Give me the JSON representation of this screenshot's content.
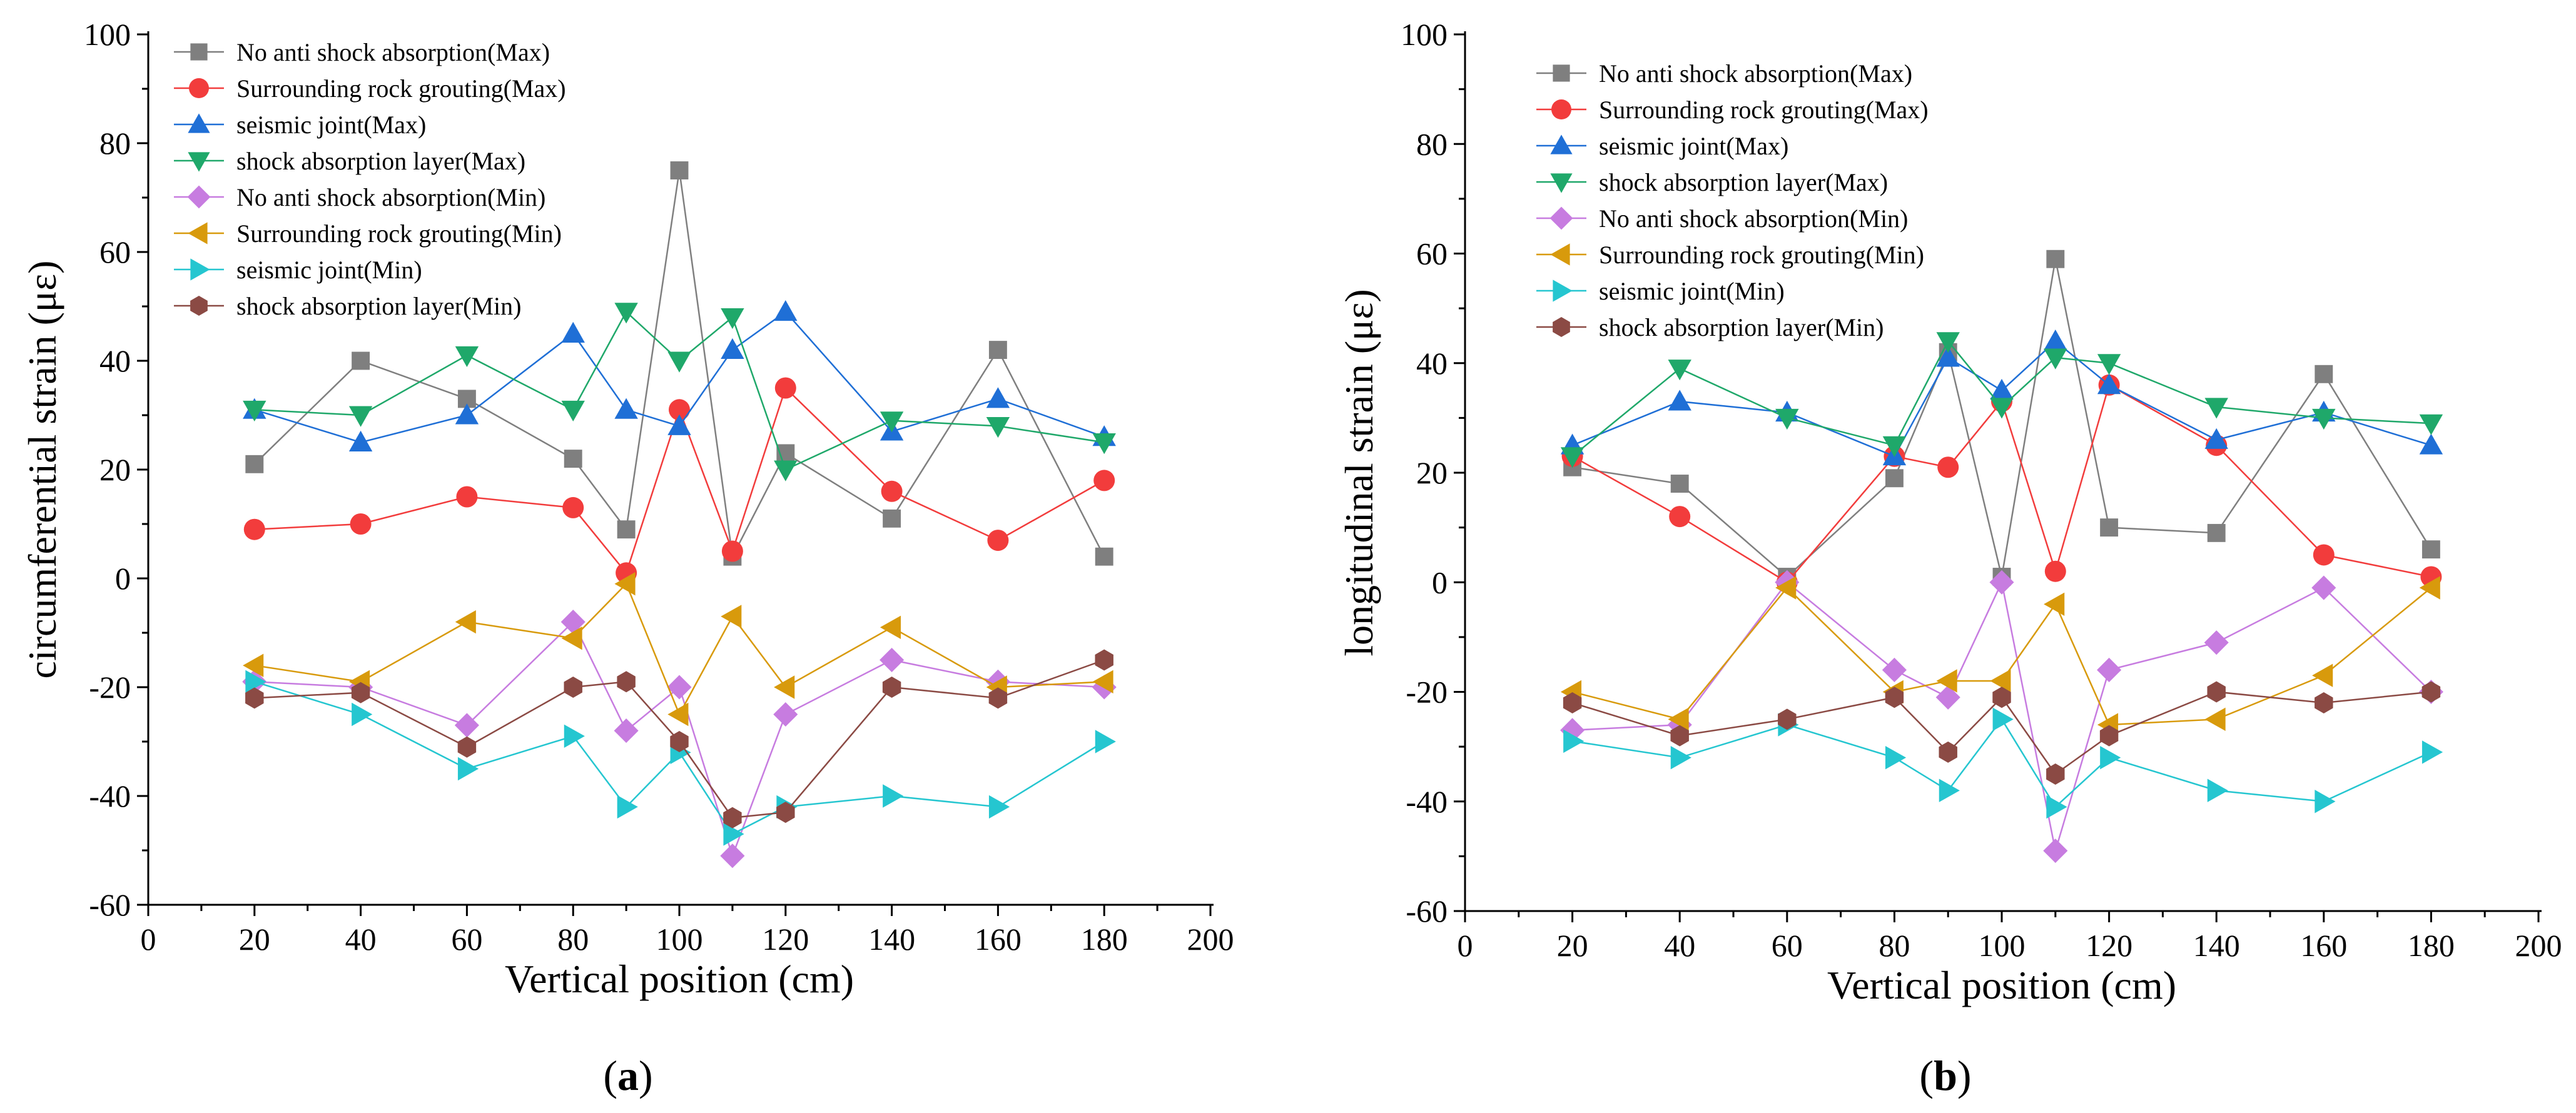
{
  "chart_data": [
    {
      "type": "line",
      "panel_label": "a",
      "xlabel": "Vertical position (cm)",
      "ylabel": "circumferential strain (με)",
      "xlim": [
        0,
        200
      ],
      "ylim": [
        -60,
        100
      ],
      "xticks": [
        0,
        20,
        40,
        60,
        80,
        100,
        120,
        140,
        160,
        180,
        200
      ],
      "yticks": [
        -60,
        -40,
        -20,
        0,
        20,
        40,
        60,
        80,
        100
      ],
      "grid": false,
      "legend_position": "top-left",
      "x": [
        20,
        40,
        60,
        80,
        90,
        100,
        110,
        120,
        140,
        160,
        180
      ],
      "series": [
        {
          "name": "No anti shock absorption(Max)",
          "marker": "square",
          "color": "#7f7f7f",
          "values": [
            21,
            40,
            33,
            22,
            9,
            75,
            4,
            23,
            11,
            42,
            4
          ]
        },
        {
          "name": "Surrounding rock grouting(Max)",
          "marker": "circle",
          "color": "#f23c3c",
          "values": [
            9,
            10,
            15,
            13,
            1,
            31,
            5,
            35,
            16,
            7,
            18
          ]
        },
        {
          "name": "seismic joint(Max)",
          "marker": "triangle-up",
          "color": "#1f6fd6",
          "values": [
            31,
            25,
            30,
            45,
            31,
            28,
            42,
            49,
            27,
            33,
            26
          ]
        },
        {
          "name": "shock absorption layer(Max)",
          "marker": "triangle-down",
          "color": "#1fa86a",
          "values": [
            31,
            30,
            41,
            31,
            49,
            40,
            48,
            20,
            29,
            28,
            25
          ]
        },
        {
          "name": "No anti shock absorption(Min)",
          "marker": "diamond",
          "color": "#c77ce0",
          "values": [
            -19,
            -20,
            -27,
            -8,
            -28,
            -20,
            -51,
            -25,
            -15,
            -19,
            -20
          ]
        },
        {
          "name": "Surrounding rock grouting(Min)",
          "marker": "triangle-left",
          "color": "#d89a0c",
          "values": [
            -16,
            -19,
            -8,
            -11,
            -1,
            -25,
            -7,
            -20,
            -9,
            -20,
            -19
          ]
        },
        {
          "name": "seismic joint(Min)",
          "marker": "triangle-right",
          "color": "#25c6d0",
          "values": [
            -19,
            -25,
            -35,
            -29,
            -42,
            -32,
            -47,
            -42,
            -40,
            -42,
            -30
          ]
        },
        {
          "name": "shock absorption layer(Min)",
          "marker": "hexagon",
          "color": "#8b4a44",
          "values": [
            -22,
            -21,
            -31,
            -20,
            -19,
            -30,
            -44,
            -43,
            -20,
            -22,
            -15
          ]
        }
      ]
    },
    {
      "type": "line",
      "panel_label": "b",
      "xlabel": "Vertical position (cm)",
      "ylabel": "longitudinal strain (με)",
      "xlim": [
        0,
        200
      ],
      "ylim": [
        -60,
        100
      ],
      "xticks": [
        0,
        20,
        40,
        60,
        80,
        100,
        120,
        140,
        160,
        180,
        200
      ],
      "yticks": [
        -60,
        -40,
        -20,
        0,
        20,
        40,
        60,
        80,
        100
      ],
      "grid": false,
      "legend_position": "top-left",
      "x": [
        20,
        40,
        60,
        80,
        90,
        100,
        110,
        120,
        140,
        160,
        180
      ],
      "series": [
        {
          "name": "No anti shock absorption(Max)",
          "marker": "square",
          "color": "#7f7f7f",
          "values": [
            21,
            18,
            1,
            19,
            42,
            1,
            59,
            10,
            9,
            38,
            6
          ]
        },
        {
          "name": "Surrounding rock grouting(Max)",
          "marker": "circle",
          "color": "#f23c3c",
          "values": [
            23,
            12,
            0,
            23,
            21,
            33,
            2,
            36,
            25,
            5,
            1
          ]
        },
        {
          "name": "seismic joint(Max)",
          "marker": "triangle-up",
          "color": "#1f6fd6",
          "values": [
            25,
            33,
            31,
            23,
            41,
            35,
            44,
            36,
            26,
            31,
            25
          ]
        },
        {
          "name": "shock absorption layer(Max)",
          "marker": "triangle-down",
          "color": "#1fa86a",
          "values": [
            23,
            39,
            30,
            25,
            44,
            32,
            41,
            40,
            32,
            30,
            29
          ]
        },
        {
          "name": "No anti shock absorption(Min)",
          "marker": "diamond",
          "color": "#c77ce0",
          "values": [
            -27,
            -26,
            0,
            -16,
            -21,
            0,
            -49,
            -16,
            -11,
            -1,
            -20
          ]
        },
        {
          "name": "Surrounding rock grouting(Min)",
          "marker": "triangle-left",
          "color": "#d89a0c",
          "values": [
            -20,
            -25,
            -1,
            -20,
            -18,
            -18,
            -4,
            -26,
            -25,
            -17,
            -1
          ]
        },
        {
          "name": "seismic joint(Min)",
          "marker": "triangle-right",
          "color": "#25c6d0",
          "values": [
            -29,
            -32,
            -26,
            -32,
            -38,
            -25,
            -41,
            -32,
            -38,
            -40,
            -31
          ]
        },
        {
          "name": "shock absorption layer(Min)",
          "marker": "hexagon",
          "color": "#8b4a44",
          "values": [
            -22,
            -28,
            -25,
            -21,
            -31,
            -21,
            -35,
            -28,
            -20,
            -22,
            -20
          ]
        }
      ]
    }
  ]
}
